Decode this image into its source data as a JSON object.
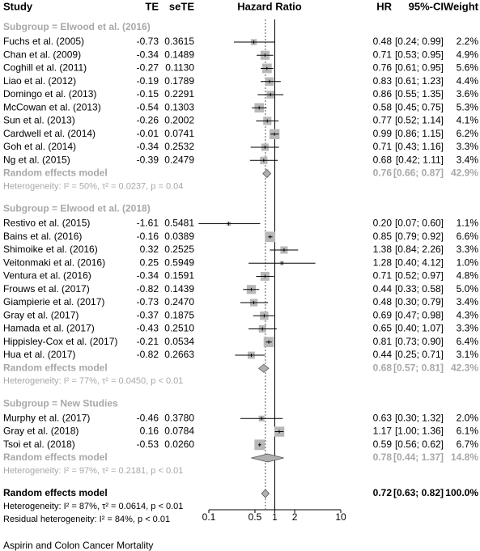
{
  "chart_data": {
    "type": "forest",
    "columns": {
      "study": "Study",
      "te": "TE",
      "se": "seTE",
      "plot": "Hazard Ratio",
      "hr": "HR",
      "ci": "95%-CI",
      "weight": "Weight"
    },
    "xlim": [
      0.1,
      10
    ],
    "xticks": [
      0.1,
      0.5,
      1,
      2,
      10
    ],
    "log_scale": true,
    "reference_line": 1,
    "square_color": "#b8b8b8",
    "groups": [
      {
        "title": "Subgroup = Elwood et al. (2016)",
        "studies": [
          {
            "name": "Fuchs et al. (2005)",
            "te": -0.73,
            "se": 0.3615,
            "hr": 0.48,
            "ci_lower": 0.24,
            "ci_upper": 0.99,
            "ci_label": "[0.24; 0.99]",
            "weight": {
              "value": 2.2,
              "label": "2.2%"
            }
          },
          {
            "name": "Chan et al. (2009)",
            "te": -0.34,
            "se": 0.1489,
            "hr": 0.71,
            "ci_lower": 0.53,
            "ci_upper": 0.95,
            "ci_label": "[0.53; 0.95]",
            "weight": {
              "value": 4.9,
              "label": "4.9%"
            }
          },
          {
            "name": "Coghill et al. (2011)",
            "te": -0.27,
            "se": {
              "value": 0.113,
              "label": "0.1130"
            },
            "hr": 0.76,
            "ci_lower": 0.61,
            "ci_upper": 0.95,
            "ci_label": "[0.61; 0.95]",
            "weight": {
              "value": 5.6,
              "label": "5.6%"
            }
          },
          {
            "name": "Liao et al. (2012)",
            "te": -0.19,
            "se": 0.1789,
            "hr": 0.83,
            "ci_lower": 0.61,
            "ci_upper": 1.23,
            "ci_label": "[0.61; 1.23]",
            "weight": {
              "value": 4.4,
              "label": "4.4%"
            }
          },
          {
            "name": "Domingo et al. (2013)",
            "te": -0.15,
            "se": 0.2291,
            "hr": 0.86,
            "ci_lower": 0.55,
            "ci_upper": 1.35,
            "ci_label": "[0.55; 1.35]",
            "weight": {
              "value": 3.6,
              "label": "3.6%"
            }
          },
          {
            "name": "McCowan et al. (2013)",
            "te": -0.54,
            "se": 0.1303,
            "hr": 0.58,
            "ci_lower": 0.45,
            "ci_upper": 0.75,
            "ci_label": "[0.45; 0.75]",
            "weight": {
              "value": 5.3,
              "label": "5.3%"
            }
          },
          {
            "name": "Sun et al. (2013)",
            "te": -0.26,
            "se": 0.2002,
            "hr": 0.77,
            "ci_lower": 0.52,
            "ci_upper": 1.14,
            "ci_label": "[0.52; 1.14]",
            "weight": {
              "value": 4.1,
              "label": "4.1%"
            }
          },
          {
            "name": "Cardwell et al. (2014)",
            "te": -0.01,
            "se": 0.0741,
            "hr": 0.99,
            "ci_lower": 0.86,
            "ci_upper": 1.15,
            "ci_label": "[0.86; 1.15]",
            "weight": {
              "value": 6.2,
              "label": "6.2%"
            }
          },
          {
            "name": "Goh et al. (2014)",
            "te": -0.34,
            "se": 0.2532,
            "hr": 0.71,
            "ci_lower": 0.43,
            "ci_upper": 1.16,
            "ci_label": "[0.43; 1.16]",
            "weight": {
              "value": 3.3,
              "label": "3.3%"
            }
          },
          {
            "name": "Ng et al. (2015)",
            "te": -0.39,
            "se": 0.2479,
            "hr": 0.68,
            "ci_lower": 0.42,
            "ci_upper": 1.11,
            "ci_label": "[0.42; 1.11]",
            "weight": {
              "value": 3.4,
              "label": "3.4%"
            }
          }
        ],
        "summary": {
          "name": "Random effects model",
          "hr": 0.76,
          "ci_lower": 0.66,
          "ci_upper": 0.87,
          "ci_label": "[0.66; 0.87]",
          "weight": {
            "value": 42.9,
            "label": "42.9%"
          }
        },
        "heterogeneity": "Heterogeneity: I² = 50%, τ² = 0.0237, p = 0.04"
      },
      {
        "title": "Subgroup = Elwood et al. (2018)",
        "studies": [
          {
            "name": "Restivo et al. (2015)",
            "te": -1.61,
            "se": 0.5481,
            "hr": {
              "value": 0.2,
              "label": "0.20"
            },
            "ci_lower": 0.07,
            "ci_upper": 0.6,
            "ci_label": "[0.07; 0.60]",
            "weight": {
              "value": 1.1,
              "label": "1.1%"
            }
          },
          {
            "name": "Bains et al. (2016)",
            "te": -0.16,
            "se": 0.0389,
            "hr": 0.85,
            "ci_lower": 0.79,
            "ci_upper": 0.92,
            "ci_label": "[0.79; 0.92]",
            "weight": {
              "value": 6.6,
              "label": "6.6%"
            }
          },
          {
            "name": "Shimoike et al. (2016)",
            "te": 0.32,
            "se": 0.2525,
            "hr": 1.38,
            "ci_lower": 0.84,
            "ci_upper": 2.26,
            "ci_label": "[0.84; 2.26]",
            "weight": {
              "value": 3.3,
              "label": "3.3%"
            }
          },
          {
            "name": "Veitonmaki et al. (2016)",
            "te": 0.25,
            "se": 0.5949,
            "hr": 1.28,
            "ci_lower": 0.4,
            "ci_upper": 4.12,
            "ci_label": "[0.40; 4.12]",
            "weight": {
              "value": 1.0,
              "label": "1.0%"
            }
          },
          {
            "name": "Ventura et al. (2016)",
            "te": -0.34,
            "se": 0.1591,
            "hr": 0.71,
            "ci_lower": 0.52,
            "ci_upper": 0.97,
            "ci_label": "[0.52; 0.97]",
            "weight": {
              "value": 4.8,
              "label": "4.8%"
            }
          },
          {
            "name": "Frouws et al. (2017)",
            "te": -0.82,
            "se": 0.1439,
            "hr": 0.44,
            "ci_lower": 0.33,
            "ci_upper": 0.58,
            "ci_label": "[0.33; 0.58]",
            "weight": {
              "value": 5.0,
              "label": "5.0%"
            }
          },
          {
            "name": "Giampierie et al. (2017)",
            "te": -0.73,
            "se": {
              "value": 0.247,
              "label": "0.2470"
            },
            "hr": 0.48,
            "ci_lower": 0.3,
            "ci_upper": 0.79,
            "ci_label": "[0.30; 0.79]",
            "weight": {
              "value": 3.4,
              "label": "3.4%"
            }
          },
          {
            "name": "Gray et al. (2017)",
            "te": -0.37,
            "se": 0.1875,
            "hr": 0.69,
            "ci_lower": 0.47,
            "ci_upper": 0.98,
            "ci_label": "[0.47; 0.98]",
            "weight": {
              "value": 4.3,
              "label": "4.3%"
            }
          },
          {
            "name": "Hamada et al. (2017)",
            "te": -0.43,
            "se": {
              "value": 0.251,
              "label": "0.2510"
            },
            "hr": 0.65,
            "ci_lower": 0.4,
            "ci_upper": 1.07,
            "ci_label": "[0.40; 1.07]",
            "weight": {
              "value": 3.3,
              "label": "3.3%"
            }
          },
          {
            "name": "Hippisley-Cox et al. (2017)",
            "te": -0.21,
            "se": 0.0534,
            "hr": 0.81,
            "ci_lower": 0.73,
            "ci_upper": 0.9,
            "ci_label": "[0.73; 0.90]",
            "weight": {
              "value": 6.4,
              "label": "6.4%"
            }
          },
          {
            "name": "Hua et al. (2017)",
            "te": -0.82,
            "se": 0.2663,
            "hr": 0.44,
            "ci_lower": 0.25,
            "ci_upper": 0.71,
            "ci_label": "[0.25; 0.71]",
            "weight": {
              "value": 3.1,
              "label": "3.1%"
            }
          }
        ],
        "summary": {
          "name": "Random effects model",
          "hr": 0.68,
          "ci_lower": 0.57,
          "ci_upper": 0.81,
          "ci_label": "[0.57; 0.81]",
          "weight": {
            "value": 42.3,
            "label": "42.3%"
          }
        },
        "heterogeneity": "Heterogeneity: I² = 77%, τ² = 0.0450, p < 0.01"
      },
      {
        "title": "Subgroup = New Studies",
        "studies": [
          {
            "name": "Murphy et al. (2017)",
            "te": -0.46,
            "se": {
              "value": 0.378,
              "label": "0.3780"
            },
            "hr": 0.63,
            "ci_lower": 0.3,
            "ci_upper": 1.32,
            "ci_label": "[0.30; 1.32]",
            "weight": {
              "value": 2.0,
              "label": "2.0%"
            }
          },
          {
            "name": "Gray et al. (2018)",
            "te": 0.16,
            "se": 0.0784,
            "hr": 1.17,
            "ci_lower": 1.0,
            "ci_upper": 1.36,
            "ci_label": "[1.00; 1.36]",
            "weight": {
              "value": 6.1,
              "label": "6.1%"
            }
          },
          {
            "name": "Tsoi et al. (2018)",
            "te": -0.53,
            "se": {
              "value": 0.026,
              "label": "0.0260"
            },
            "hr": 0.59,
            "ci_lower": 0.56,
            "ci_upper": 0.62,
            "ci_label": "[0.56; 0.62]",
            "weight": {
              "value": 6.7,
              "label": "6.7%"
            }
          }
        ],
        "summary": {
          "name": "Random effects model",
          "hr": 0.78,
          "ci_lower": 0.44,
          "ci_upper": 1.37,
          "ci_label": "[0.44; 1.37]",
          "weight": {
            "value": 14.8,
            "label": "14.8%"
          }
        },
        "heterogeneity": "Heterogeneity: I² = 97%, τ² = 0.2181, p < 0.01"
      }
    ],
    "overall": {
      "name": "Random effects model",
      "hr": 0.72,
      "ci_lower": 0.63,
      "ci_upper": 0.82,
      "ci_label": "[0.63; 0.82]",
      "weight": {
        "value": 100.0,
        "label": "100.0%"
      },
      "heterogeneity": "Heterogeneity: I² = 87%, τ² = 0.0614, p < 0.01",
      "residual_heterogeneity": "Residual heterogeneity: I² = 84%, p < 0.01"
    },
    "caption": "Aspirin and Colon Cancer Mortality"
  }
}
